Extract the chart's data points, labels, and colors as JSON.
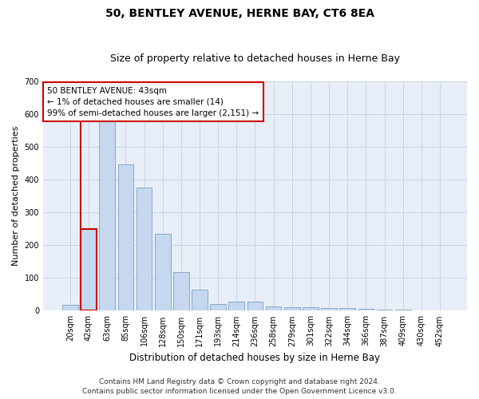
{
  "title": "50, BENTLEY AVENUE, HERNE BAY, CT6 8EA",
  "subtitle": "Size of property relative to detached houses in Herne Bay",
  "xlabel": "Distribution of detached houses by size in Herne Bay",
  "ylabel": "Number of detached properties",
  "categories": [
    "20sqm",
    "42sqm",
    "63sqm",
    "85sqm",
    "106sqm",
    "128sqm",
    "150sqm",
    "171sqm",
    "193sqm",
    "214sqm",
    "236sqm",
    "258sqm",
    "279sqm",
    "301sqm",
    "322sqm",
    "344sqm",
    "366sqm",
    "387sqm",
    "409sqm",
    "430sqm",
    "452sqm"
  ],
  "values": [
    18,
    248,
    580,
    447,
    375,
    235,
    118,
    65,
    20,
    28,
    28,
    12,
    10,
    10,
    9,
    8,
    5,
    4,
    4,
    1,
    0
  ],
  "bar_color": "#c5d8ef",
  "bar_edge_color": "#7a9fc0",
  "highlight_bar_index": 1,
  "highlight_edge_color": "#cc0000",
  "annotation_text_line1": "50 BENTLEY AVENUE: 43sqm",
  "annotation_text_line2": "← 1% of detached houses are smaller (14)",
  "annotation_text_line3": "99% of semi-detached houses are larger (2,151) →",
  "annotation_box_color": "#cc0000",
  "ylim": [
    0,
    700
  ],
  "yticks": [
    0,
    100,
    200,
    300,
    400,
    500,
    600,
    700
  ],
  "grid_color": "#ccd5e5",
  "background_color": "#e8eef8",
  "footer_line1": "Contains HM Land Registry data © Crown copyright and database right 2024.",
  "footer_line2": "Contains public sector information licensed under the Open Government Licence v3.0.",
  "title_fontsize": 10,
  "subtitle_fontsize": 9,
  "xlabel_fontsize": 8.5,
  "ylabel_fontsize": 8,
  "tick_fontsize": 7,
  "footer_fontsize": 6.5,
  "annotation_fontsize": 7.5
}
